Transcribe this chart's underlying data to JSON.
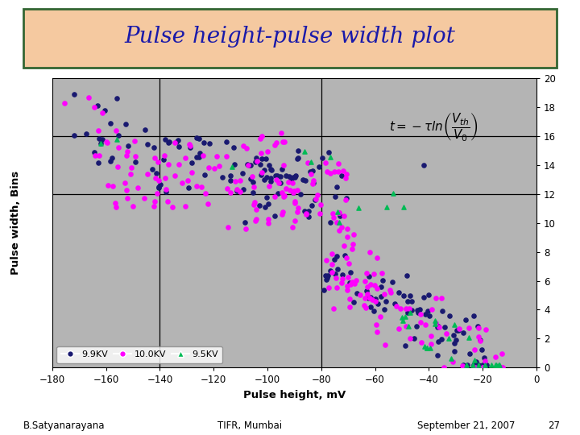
{
  "title": "Pulse height-pulse width plot",
  "title_bg": "#f5c9a0",
  "title_color": "#1a1aaa",
  "xlabel": "Pulse height, mV",
  "ylabel": "Pulse width, Bins",
  "xlim": [
    -180,
    0
  ],
  "ylim": [
    0,
    20
  ],
  "xticks": [
    -180,
    -160,
    -140,
    -120,
    -100,
    -80,
    -60,
    -40,
    -20,
    0
  ],
  "yticks": [
    0,
    2,
    4,
    6,
    8,
    10,
    12,
    14,
    16,
    18,
    20
  ],
  "plot_bg": "#b4b4b4",
  "hlines": [
    16,
    12
  ],
  "vlines": [
    -80,
    -140
  ],
  "series": {
    "9.9KV": {
      "color": "#191970",
      "marker": "o",
      "size": 14
    },
    "10.0KV": {
      "color": "#ff00ff",
      "marker": "o",
      "size": 14
    },
    "9.5KV": {
      "color": "#00bb55",
      "marker": "^",
      "size": 14
    }
  },
  "footer": {
    "left": "B.Satyanarayana",
    "center": "TIFR, Mumbai",
    "right": "September 21, 2007",
    "page": "27"
  }
}
